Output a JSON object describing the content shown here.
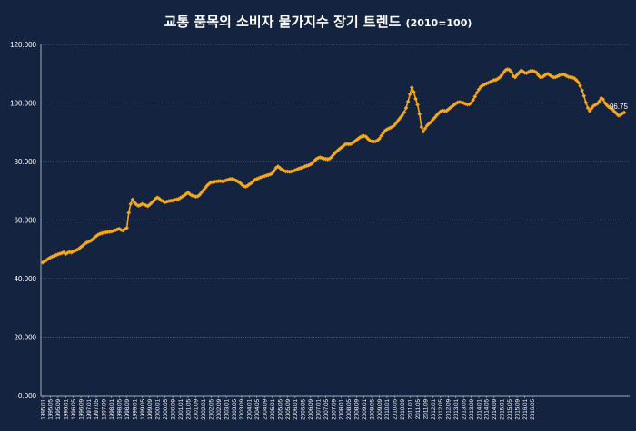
{
  "chart_data": {
    "type": "line",
    "title": "교통 품목의 소비자 물가지수 장기 트렌드",
    "title_suffix": "(2010=100)",
    "xlabel": "",
    "ylabel": "",
    "ylim": [
      0,
      120
    ],
    "y_ticks": [
      "0.000",
      "20.000",
      "40.000",
      "60.000",
      "80.000",
      "100.000",
      "120.000"
    ],
    "x_ticks": [
      "1995.01",
      "1995.05",
      "1995.09",
      "1996.01",
      "1996.05",
      "1996.09",
      "1997.01",
      "1997.05",
      "1997.09",
      "1998.01",
      "1998.05",
      "1998.09",
      "1999.01",
      "1999.05",
      "1999.09",
      "2000.01",
      "2000.05",
      "2000.09",
      "2001.01",
      "2001.05",
      "2001.09",
      "2002.01",
      "2002.05",
      "2002.09",
      "2003.01",
      "2003.05",
      "2003.09",
      "2004.01",
      "2004.05",
      "2004.09",
      "2005.01",
      "2005.05",
      "2005.09",
      "2006.01",
      "2006.05",
      "2006.09",
      "2007.01",
      "2007.05",
      "2007.09",
      "2008.01",
      "2008.05",
      "2008.09",
      "2009.01",
      "2009.05",
      "2009.09",
      "2010.01",
      "2010.05",
      "2010.09",
      "2011.01",
      "2011.05",
      "2011.09",
      "2012.01",
      "2012.05",
      "2012.09",
      "2013.01",
      "2013.05",
      "2013.09",
      "2014.01",
      "2014.05",
      "2014.09",
      "2015.01",
      "2015.05",
      "2015.09",
      "2016.01",
      "2016.05"
    ],
    "grid": true,
    "line_color": "#f5a81c",
    "grid_color": "#aab3c2",
    "background": "#14233f",
    "series": [
      {
        "name": "",
        "start": "1995.01",
        "step_months": 1,
        "values": [
          45.5,
          45.9,
          46.3,
          46.8,
          47.2,
          47.5,
          47.8,
          48.0,
          48.3,
          48.5,
          48.7,
          49.0,
          48.4,
          48.8,
          49.1,
          48.9,
          49.3,
          49.6,
          49.8,
          50.2,
          50.8,
          51.3,
          51.9,
          52.3,
          52.6,
          52.9,
          53.3,
          54.0,
          54.5,
          55.0,
          55.3,
          55.5,
          55.7,
          55.8,
          55.9,
          56.0,
          56.1,
          56.3,
          56.5,
          56.8,
          57.0,
          56.6,
          56.4,
          56.9,
          57.3,
          62.5,
          65.5,
          67.0,
          66.0,
          65.3,
          64.9,
          65.1,
          65.5,
          65.3,
          65.0,
          64.8,
          65.3,
          65.9,
          66.5,
          67.3,
          67.7,
          67.3,
          66.7,
          66.4,
          66.1,
          66.3,
          66.5,
          66.6,
          66.7,
          66.9,
          67.0,
          67.2,
          67.6,
          68.0,
          68.4,
          68.9,
          69.4,
          68.8,
          68.4,
          68.2,
          68.0,
          68.1,
          68.6,
          69.4,
          70.2,
          71.0,
          71.8,
          72.4,
          72.9,
          73.0,
          73.1,
          73.2,
          73.3,
          73.3,
          73.2,
          73.4,
          73.6,
          73.8,
          74.0,
          74.0,
          73.8,
          73.5,
          73.2,
          72.8,
          72.2,
          71.6,
          71.4,
          71.7,
          72.2,
          72.6,
          73.2,
          73.8,
          74.0,
          74.3,
          74.6,
          74.8,
          75.0,
          75.2,
          75.4,
          75.6,
          76.0,
          76.8,
          77.8,
          78.3,
          77.8,
          77.2,
          76.9,
          76.6,
          76.6,
          76.5,
          76.6,
          76.8,
          77.0,
          77.3,
          77.6,
          77.8,
          78.0,
          78.3,
          78.5,
          78.7,
          79.0,
          79.5,
          80.2,
          80.8,
          81.2,
          81.4,
          81.2,
          81.0,
          80.9,
          80.8,
          81.0,
          81.5,
          82.3,
          83.0,
          83.6,
          84.2,
          84.7,
          85.2,
          85.8,
          86.0,
          85.9,
          86.0,
          86.3,
          86.8,
          87.3,
          87.8,
          88.3,
          88.6,
          88.7,
          88.5,
          87.8,
          87.2,
          86.9,
          86.8,
          86.9,
          87.2,
          87.8,
          88.8,
          89.7,
          90.5,
          91.0,
          91.3,
          91.6,
          91.9,
          92.5,
          93.3,
          94.2,
          95.0,
          95.8,
          96.8,
          98.3,
          100.5,
          103.0,
          105.3,
          103.8,
          101.4,
          99.4,
          96.2,
          91.8,
          90.2,
          91.3,
          92.3,
          93.0,
          93.5,
          94.3,
          95.0,
          95.8,
          96.5,
          97.1,
          97.4,
          97.3,
          97.3,
          97.8,
          98.3,
          98.8,
          99.3,
          99.8,
          100.2,
          100.3,
          100.2,
          100.0,
          99.7,
          99.5,
          99.6,
          100.0,
          101.0,
          102.2,
          103.5,
          104.6,
          105.5,
          106.0,
          106.3,
          106.6,
          106.9,
          107.2,
          107.6,
          107.8,
          107.9,
          108.3,
          108.8,
          109.5,
          110.4,
          111.2,
          111.5,
          111.3,
          110.6,
          109.2,
          108.8,
          109.6,
          110.3,
          111.0,
          110.8,
          110.3,
          110.2,
          110.6,
          110.9,
          111.0,
          110.8,
          110.5,
          109.6,
          108.9,
          108.8,
          109.2,
          109.7,
          110.0,
          109.6,
          109.1,
          108.8,
          108.8,
          109.1,
          109.4,
          109.6,
          109.8,
          109.6,
          109.2,
          108.9,
          108.8,
          108.7,
          108.4,
          107.8,
          107.0,
          105.8,
          104.3,
          102.4,
          100.1,
          98.3,
          97.3,
          98.2,
          99.0,
          99.4,
          99.8,
          100.6,
          101.7,
          101.2,
          100.0,
          99.2,
          98.6,
          98.2,
          97.8,
          97.0,
          96.4,
          95.7,
          95.9,
          96.4,
          96.75
        ],
        "end_label": "96.75"
      }
    ]
  }
}
